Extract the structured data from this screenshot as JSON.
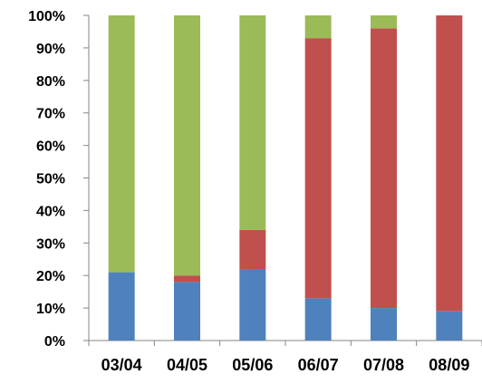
{
  "chart_data": {
    "type": "bar",
    "stacked": true,
    "percent": true,
    "categories": [
      "03/04",
      "04/05",
      "05/06",
      "06/07",
      "07/08",
      "08/09"
    ],
    "series": [
      {
        "values": [
          21,
          18,
          22,
          13,
          10,
          9
        ],
        "color": "#4F81BD"
      },
      {
        "values": [
          0,
          2,
          12,
          80,
          86,
          91
        ],
        "color": "#C0504D"
      },
      {
        "values": [
          79,
          80,
          66,
          7,
          4,
          0
        ],
        "color": "#9BBB59"
      }
    ],
    "ylim": [
      0,
      100
    ],
    "yticks": [
      "0%",
      "10%",
      "20%",
      "30%",
      "40%",
      "50%",
      "60%",
      "70%",
      "80%",
      "90%",
      "100%"
    ],
    "grid": false,
    "legend": "none"
  }
}
